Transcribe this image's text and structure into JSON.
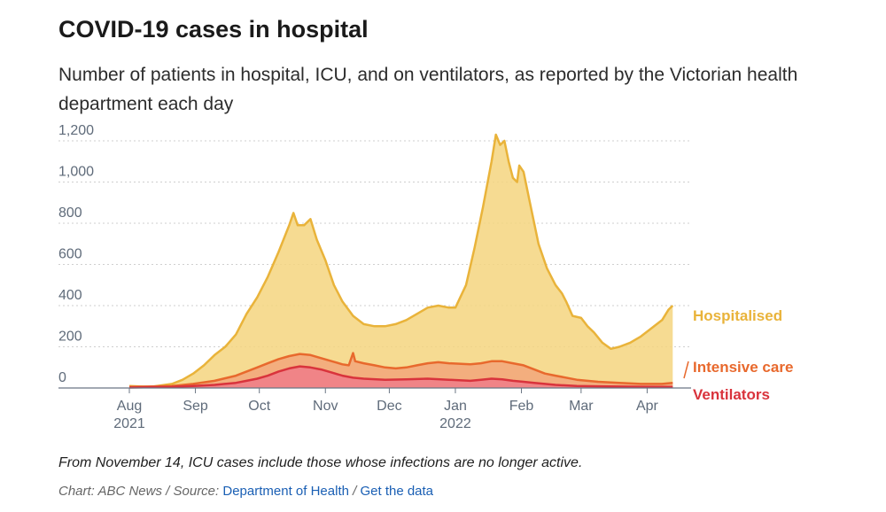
{
  "title": "COVID-19 cases in hospital",
  "subtitle": "Number of patients in hospital, ICU, and on ventilators, as reported by the Victorian health department each day",
  "footnote": "From November 14, ICU cases include those whose infections are no longer active.",
  "credit": {
    "chart_label": "Chart: ABC News",
    "sep1": " / ",
    "source_label": "Source:",
    "source_link": "Department of Health",
    "sep2": " / ",
    "data_link": "Get the data"
  },
  "colors": {
    "hospitalised": "#e9b33a",
    "hospitalised_fill": "#f5d57f",
    "intensive_care": "#e8692d",
    "icu_fill": "#f3a97c",
    "ventilators": "#d9333c",
    "vent_fill": "#ef7f88",
    "grid": "#cfcfcf",
    "axis_text": "#5f6b7a"
  },
  "chart_data": {
    "type": "area",
    "title": "COVID-19 cases in hospital",
    "xlabel": "",
    "ylabel": "",
    "ylim": [
      0,
      1250
    ],
    "yticks": [
      0,
      200,
      400,
      600,
      800,
      1000,
      1200
    ],
    "ytick_labels": [
      "0",
      "200",
      "400",
      "600",
      "800",
      "1,000",
      "1,200"
    ],
    "xticks": [
      {
        "day": 0,
        "label": "Aug",
        "sub": "2021"
      },
      {
        "day": 31,
        "label": "Sep",
        "sub": ""
      },
      {
        "day": 61,
        "label": "Oct",
        "sub": ""
      },
      {
        "day": 92,
        "label": "Nov",
        "sub": ""
      },
      {
        "day": 122,
        "label": "Dec",
        "sub": ""
      },
      {
        "day": 153,
        "label": "Jan",
        "sub": "2022"
      },
      {
        "day": 184,
        "label": "Feb",
        "sub": ""
      },
      {
        "day": 212,
        "label": "Mar",
        "sub": ""
      },
      {
        "day": 243,
        "label": "Apr",
        "sub": ""
      }
    ],
    "x_day_range": [
      0,
      255
    ],
    "x_origin": "2021-08-01",
    "series": [
      {
        "name": "Hospitalised",
        "label": "Hospitalised",
        "points": [
          [
            0,
            10
          ],
          [
            10,
            5
          ],
          [
            20,
            20
          ],
          [
            25,
            40
          ],
          [
            30,
            70
          ],
          [
            35,
            110
          ],
          [
            40,
            160
          ],
          [
            45,
            200
          ],
          [
            50,
            260
          ],
          [
            55,
            360
          ],
          [
            60,
            440
          ],
          [
            65,
            540
          ],
          [
            70,
            660
          ],
          [
            75,
            790
          ],
          [
            77,
            850
          ],
          [
            79,
            790
          ],
          [
            82,
            790
          ],
          [
            85,
            820
          ],
          [
            88,
            720
          ],
          [
            92,
            620
          ],
          [
            96,
            500
          ],
          [
            100,
            420
          ],
          [
            105,
            350
          ],
          [
            110,
            310
          ],
          [
            115,
            300
          ],
          [
            120,
            300
          ],
          [
            125,
            310
          ],
          [
            130,
            330
          ],
          [
            135,
            360
          ],
          [
            140,
            390
          ],
          [
            145,
            400
          ],
          [
            150,
            390
          ],
          [
            153,
            390
          ],
          [
            158,
            500
          ],
          [
            162,
            680
          ],
          [
            166,
            880
          ],
          [
            170,
            1100
          ],
          [
            172,
            1230
          ],
          [
            174,
            1180
          ],
          [
            176,
            1200
          ],
          [
            178,
            1100
          ],
          [
            180,
            1020
          ],
          [
            182,
            1000
          ],
          [
            183,
            1080
          ],
          [
            185,
            1050
          ],
          [
            188,
            900
          ],
          [
            192,
            700
          ],
          [
            196,
            580
          ],
          [
            200,
            500
          ],
          [
            203,
            460
          ],
          [
            205,
            420
          ],
          [
            208,
            350
          ],
          [
            212,
            340
          ],
          [
            215,
            300
          ],
          [
            218,
            270
          ],
          [
            222,
            220
          ],
          [
            226,
            190
          ],
          [
            230,
            200
          ],
          [
            235,
            220
          ],
          [
            240,
            250
          ],
          [
            245,
            290
          ],
          [
            250,
            330
          ],
          [
            253,
            380
          ],
          [
            255,
            400
          ]
        ]
      },
      {
        "name": "Intensive care",
        "label": "Intensive care",
        "points": [
          [
            0,
            5
          ],
          [
            20,
            10
          ],
          [
            30,
            20
          ],
          [
            40,
            35
          ],
          [
            50,
            60
          ],
          [
            55,
            80
          ],
          [
            60,
            100
          ],
          [
            65,
            120
          ],
          [
            70,
            140
          ],
          [
            75,
            155
          ],
          [
            80,
            165
          ],
          [
            85,
            160
          ],
          [
            90,
            145
          ],
          [
            95,
            130
          ],
          [
            100,
            115
          ],
          [
            103,
            110
          ],
          [
            105,
            170
          ],
          [
            106,
            130
          ],
          [
            110,
            120
          ],
          [
            115,
            110
          ],
          [
            120,
            100
          ],
          [
            125,
            95
          ],
          [
            130,
            100
          ],
          [
            135,
            110
          ],
          [
            140,
            120
          ],
          [
            145,
            125
          ],
          [
            150,
            120
          ],
          [
            160,
            115
          ],
          [
            165,
            120
          ],
          [
            170,
            130
          ],
          [
            175,
            130
          ],
          [
            180,
            120
          ],
          [
            185,
            110
          ],
          [
            190,
            90
          ],
          [
            195,
            70
          ],
          [
            200,
            60
          ],
          [
            210,
            40
          ],
          [
            220,
            30
          ],
          [
            230,
            25
          ],
          [
            240,
            20
          ],
          [
            250,
            20
          ],
          [
            255,
            25
          ]
        ]
      },
      {
        "name": "Ventilators",
        "label": "Ventilators",
        "points": [
          [
            0,
            2
          ],
          [
            20,
            5
          ],
          [
            30,
            10
          ],
          [
            40,
            15
          ],
          [
            50,
            25
          ],
          [
            55,
            35
          ],
          [
            60,
            45
          ],
          [
            65,
            60
          ],
          [
            70,
            80
          ],
          [
            75,
            95
          ],
          [
            80,
            105
          ],
          [
            85,
            100
          ],
          [
            90,
            90
          ],
          [
            95,
            75
          ],
          [
            100,
            60
          ],
          [
            105,
            50
          ],
          [
            110,
            45
          ],
          [
            120,
            40
          ],
          [
            130,
            42
          ],
          [
            140,
            45
          ],
          [
            150,
            40
          ],
          [
            160,
            35
          ],
          [
            165,
            40
          ],
          [
            170,
            45
          ],
          [
            175,
            42
          ],
          [
            180,
            35
          ],
          [
            185,
            30
          ],
          [
            190,
            25
          ],
          [
            200,
            15
          ],
          [
            210,
            10
          ],
          [
            220,
            8
          ],
          [
            230,
            7
          ],
          [
            240,
            6
          ],
          [
            255,
            5
          ]
        ]
      }
    ]
  }
}
